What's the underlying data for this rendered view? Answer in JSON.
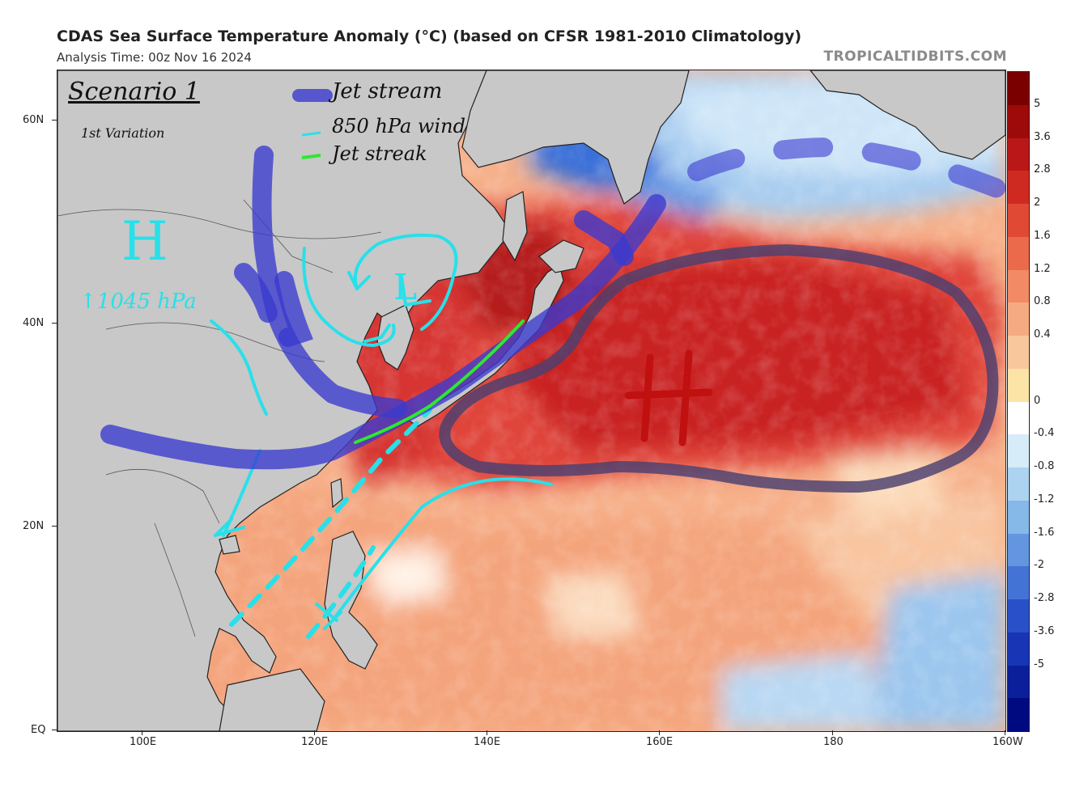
{
  "header": {
    "title": "CDAS Sea Surface Temperature Anomaly (°C) (based on CFSR 1981-2010 Climatology)",
    "analysis_time": "Analysis Time: 00z Nov 16 2024",
    "brand": "TROPICALTIDBITS.COM"
  },
  "axes": {
    "x_labels": [
      "100E",
      "120E",
      "140E",
      "160E",
      "180",
      "160W"
    ],
    "y_labels": [
      "60N",
      "40N",
      "20N",
      "EQ"
    ]
  },
  "colorbar": {
    "labels": [
      "5",
      "3.6",
      "2.8",
      "2",
      "1.6",
      "1.2",
      "0.8",
      "0.4",
      "0",
      "-0.4",
      "-0.8",
      "-1.2",
      "-1.6",
      "-2",
      "-2.8",
      "-3.6",
      "-5"
    ],
    "colors": [
      "#7a0000",
      "#9c0a0a",
      "#b81818",
      "#cf2a22",
      "#e04a35",
      "#ec6a4c",
      "#f28a66",
      "#f6aa82",
      "#f8c79c",
      "#fbe4a6",
      "#ffffff",
      "#d6ecf8",
      "#acd3f0",
      "#86b8e8",
      "#6496e0",
      "#4473d6",
      "#2a50c8",
      "#1735b5",
      "#0b1f9a",
      "#000a80"
    ]
  },
  "annotations": {
    "scenario_title": "Scenario 1",
    "scenario_variation": "1st Variation",
    "legend_jet_stream": "Jet stream",
    "legend_850_wind": "850 hPa wind",
    "legend_jet_streak": "Jet streak",
    "high_west_letter": "H",
    "high_west_pressure": "↑1045 hPa",
    "low_letter": "L",
    "high_east_letter": "H"
  },
  "colors": {
    "land": "#c8c8c8",
    "ocean_warm": "#f4a07a",
    "ocean_hot": "#d83a2c",
    "ocean_cool": "#b8d8f4",
    "jet_stream": "#3a3ad0",
    "wind_850": "#2adfe8",
    "jet_streak": "#2ee82e",
    "high_outline": "#4a4070",
    "high_letter": "#c01010"
  }
}
